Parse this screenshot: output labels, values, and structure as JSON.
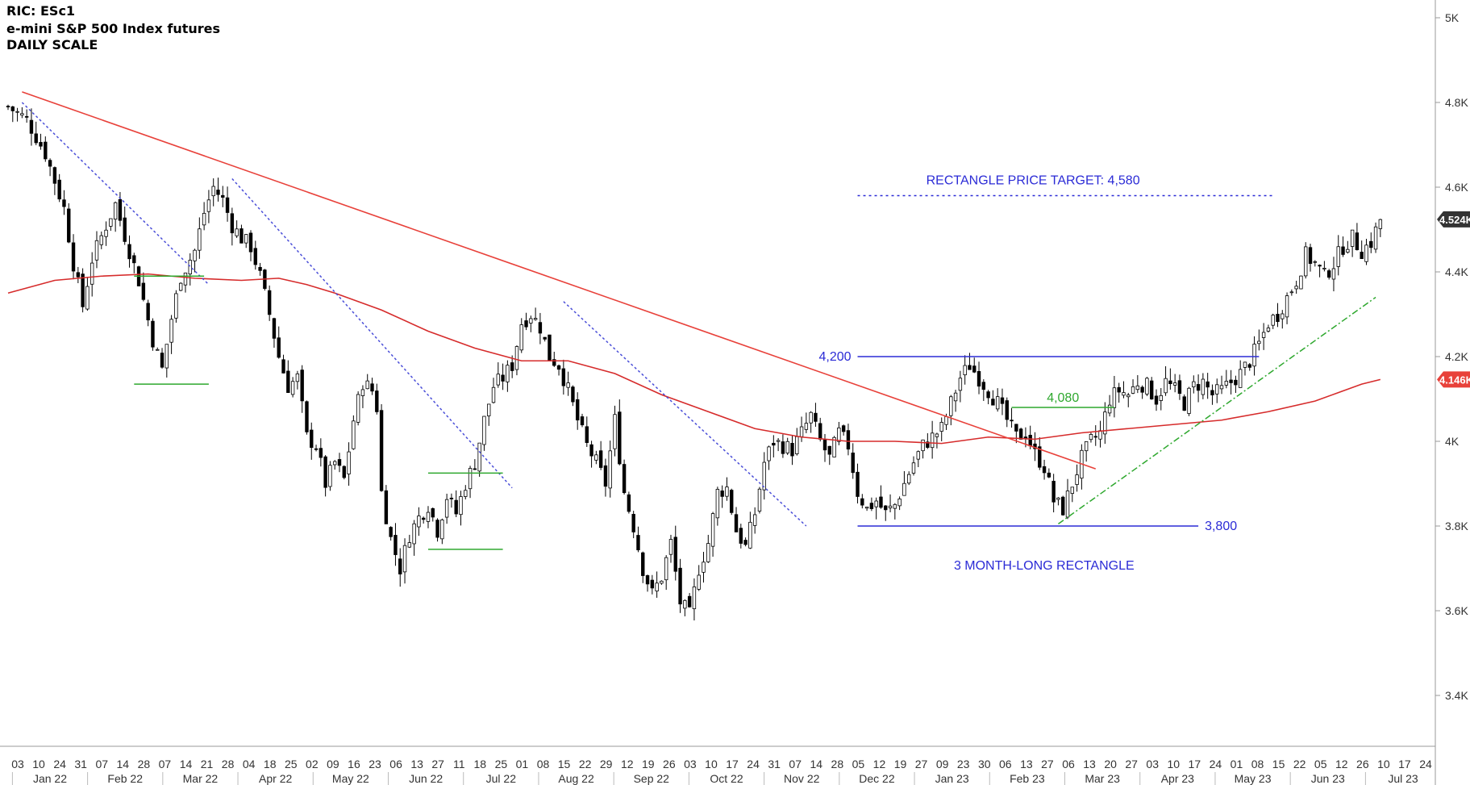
{
  "header": {
    "ric": "RIC: ESc1",
    "instrument": "e-mini S&P 500 Index futures",
    "scale": "DAILY SCALE"
  },
  "colors": {
    "candle": "#000000",
    "ma": "#d62b2b",
    "trendline": "#e8413a",
    "dotted_trend": "#4a4ed8",
    "rectangle": "#2b2bd6",
    "annotation_text": "#2b2bd6",
    "green_levels": "#2ea82e",
    "price_badge_last": "#333333",
    "price_badge_ma": "#e8413a"
  },
  "chart_data": {
    "type": "candlestick",
    "title": "e-mini S&P 500 Index futures",
    "ylim": [
      3400,
      5100
    ],
    "y_ticks": [
      "5K",
      "4.8K",
      "4.6K",
      "4.4K",
      "4.2K",
      "4K",
      "3.8K",
      "3.6K",
      "3.4K"
    ],
    "y_tick_values": [
      5000,
      4800,
      4600,
      4400,
      4200,
      4000,
      3800,
      3600,
      3400
    ],
    "x_day_labels": [
      "03",
      "10",
      "24",
      "31",
      "07",
      "14",
      "28",
      "07",
      "14",
      "21",
      "28",
      "04",
      "18",
      "25",
      "02",
      "09",
      "16",
      "23",
      "06",
      "13",
      "27",
      "11",
      "18",
      "25",
      "01",
      "08",
      "15",
      "22",
      "29",
      "12",
      "19",
      "26",
      "03",
      "10",
      "17",
      "24",
      "31",
      "07",
      "14",
      "28",
      "05",
      "12",
      "19",
      "27",
      "09",
      "23",
      "30",
      "06",
      "13",
      "27",
      "06",
      "13",
      "20",
      "27",
      "03",
      "10",
      "17",
      "24",
      "01",
      "08",
      "15",
      "22",
      "05",
      "12",
      "26",
      "10",
      "17",
      "24"
    ],
    "x_month_labels": [
      "Jan 22",
      "Feb 22",
      "Mar 22",
      "Apr 22",
      "May 22",
      "Jun 22",
      "Jul 22",
      "Aug 22",
      "Sep 22",
      "Oct 22",
      "Nov 22",
      "Dec 22",
      "Jan 23",
      "Feb 23",
      "Mar 23",
      "Apr 23",
      "May 23",
      "Jun 23",
      "Jul 23"
    ],
    "price_path": [
      [
        0,
        4790
      ],
      [
        4,
        4760
      ],
      [
        8,
        4680
      ],
      [
        12,
        4550
      ],
      [
        14,
        4420
      ],
      [
        16,
        4320
      ],
      [
        18,
        4430
      ],
      [
        21,
        4510
      ],
      [
        23,
        4560
      ],
      [
        26,
        4450
      ],
      [
        28,
        4380
      ],
      [
        31,
        4240
      ],
      [
        33,
        4170
      ],
      [
        35,
        4290
      ],
      [
        37,
        4390
      ],
      [
        40,
        4450
      ],
      [
        42,
        4540
      ],
      [
        44,
        4600
      ],
      [
        46,
        4570
      ],
      [
        48,
        4510
      ],
      [
        50,
        4480
      ],
      [
        52,
        4460
      ],
      [
        54,
        4390
      ],
      [
        56,
        4300
      ],
      [
        58,
        4200
      ],
      [
        60,
        4130
      ],
      [
        62,
        4150
      ],
      [
        64,
        4010
      ],
      [
        66,
        3990
      ],
      [
        68,
        3900
      ],
      [
        70,
        3950
      ],
      [
        72,
        3910
      ],
      [
        74,
        4050
      ],
      [
        76,
        4140
      ],
      [
        78,
        4120
      ],
      [
        79,
        4080
      ],
      [
        80,
        3880
      ],
      [
        82,
        3770
      ],
      [
        84,
        3700
      ],
      [
        86,
        3780
      ],
      [
        88,
        3820
      ],
      [
        90,
        3850
      ],
      [
        92,
        3790
      ],
      [
        94,
        3870
      ],
      [
        96,
        3830
      ],
      [
        98,
        3900
      ],
      [
        100,
        3950
      ],
      [
        102,
        4050
      ],
      [
        104,
        4130
      ],
      [
        106,
        4150
      ],
      [
        108,
        4180
      ],
      [
        110,
        4280
      ],
      [
        112,
        4300
      ],
      [
        114,
        4270
      ],
      [
        116,
        4200
      ],
      [
        118,
        4180
      ],
      [
        120,
        4120
      ],
      [
        122,
        4050
      ],
      [
        124,
        3990
      ],
      [
        126,
        3950
      ],
      [
        128,
        3900
      ],
      [
        130,
        4050
      ],
      [
        132,
        3880
      ],
      [
        134,
        3800
      ],
      [
        136,
        3700
      ],
      [
        138,
        3640
      ],
      [
        140,
        3680
      ],
      [
        142,
        3760
      ],
      [
        144,
        3620
      ],
      [
        146,
        3590
      ],
      [
        148,
        3700
      ],
      [
        150,
        3760
      ],
      [
        152,
        3880
      ],
      [
        154,
        3890
      ],
      [
        156,
        3790
      ],
      [
        158,
        3750
      ],
      [
        160,
        3830
      ],
      [
        162,
        3950
      ],
      [
        164,
        4000
      ],
      [
        166,
        3990
      ],
      [
        168,
        3980
      ],
      [
        170,
        4020
      ],
      [
        172,
        4060
      ],
      [
        174,
        4000
      ],
      [
        176,
        3960
      ],
      [
        178,
        4020
      ],
      [
        180,
        3990
      ],
      [
        182,
        3880
      ],
      [
        184,
        3840
      ],
      [
        186,
        3860
      ],
      [
        188,
        3830
      ],
      [
        190,
        3850
      ],
      [
        192,
        3900
      ],
      [
        194,
        3950
      ],
      [
        196,
        3990
      ],
      [
        198,
        4010
      ],
      [
        200,
        4030
      ],
      [
        202,
        4090
      ],
      [
        204,
        4150
      ],
      [
        206,
        4180
      ],
      [
        208,
        4150
      ],
      [
        210,
        4120
      ],
      [
        212,
        4090
      ],
      [
        214,
        4050
      ],
      [
        216,
        4010
      ],
      [
        218,
        4020
      ],
      [
        220,
        3970
      ],
      [
        222,
        3940
      ],
      [
        224,
        3860
      ],
      [
        226,
        3840
      ],
      [
        228,
        3900
      ],
      [
        230,
        3960
      ],
      [
        232,
        4000
      ],
      [
        234,
        4020
      ],
      [
        236,
        4100
      ],
      [
        238,
        4120
      ],
      [
        240,
        4110
      ],
      [
        242,
        4140
      ],
      [
        244,
        4130
      ],
      [
        246,
        4100
      ],
      [
        248,
        4140
      ],
      [
        250,
        4120
      ],
      [
        252,
        4090
      ],
      [
        254,
        4130
      ],
      [
        256,
        4140
      ],
      [
        258,
        4110
      ],
      [
        260,
        4120
      ],
      [
        262,
        4140
      ],
      [
        264,
        4160
      ],
      [
        266,
        4190
      ],
      [
        268,
        4230
      ],
      [
        270,
        4280
      ],
      [
        272,
        4300
      ],
      [
        274,
        4340
      ],
      [
        276,
        4380
      ],
      [
        278,
        4440
      ],
      [
        280,
        4420
      ],
      [
        282,
        4390
      ],
      [
        284,
        4420
      ],
      [
        286,
        4460
      ],
      [
        288,
        4480
      ],
      [
        290,
        4450
      ],
      [
        292,
        4470
      ],
      [
        294,
        4524
      ]
    ],
    "moving_average": [
      [
        0,
        4350
      ],
      [
        10,
        4380
      ],
      [
        20,
        4390
      ],
      [
        30,
        4395
      ],
      [
        40,
        4385
      ],
      [
        50,
        4380
      ],
      [
        58,
        4385
      ],
      [
        64,
        4370
      ],
      [
        70,
        4350
      ],
      [
        80,
        4310
      ],
      [
        90,
        4260
      ],
      [
        100,
        4220
      ],
      [
        110,
        4190
      ],
      [
        120,
        4190
      ],
      [
        130,
        4160
      ],
      [
        140,
        4110
      ],
      [
        150,
        4070
      ],
      [
        160,
        4030
      ],
      [
        170,
        4010
      ],
      [
        180,
        4000
      ],
      [
        190,
        4000
      ],
      [
        200,
        3995
      ],
      [
        210,
        4010
      ],
      [
        220,
        4005
      ],
      [
        230,
        4020
      ],
      [
        240,
        4030
      ],
      [
        250,
        4040
      ],
      [
        260,
        4050
      ],
      [
        270,
        4070
      ],
      [
        280,
        4095
      ],
      [
        285,
        4115
      ],
      [
        290,
        4135
      ],
      [
        294,
        4146
      ]
    ],
    "trendlines": [
      {
        "style": "solid-red",
        "points": [
          [
            3,
            4825
          ],
          [
            233,
            3935
          ]
        ]
      },
      {
        "style": "dotted-blue",
        "points": [
          [
            3,
            4800
          ],
          [
            43,
            4370
          ]
        ]
      },
      {
        "style": "dotted-blue",
        "points": [
          [
            48,
            4620
          ],
          [
            108,
            3890
          ]
        ]
      },
      {
        "style": "dotted-blue",
        "points": [
          [
            119,
            4330
          ],
          [
            171,
            3800
          ]
        ]
      },
      {
        "style": "dashdot-green",
        "points": [
          [
            225,
            3805
          ],
          [
            293,
            4340
          ]
        ]
      }
    ],
    "levels": [
      {
        "kind": "rectangle-top",
        "value": 4200,
        "x": [
          182,
          268
        ],
        "color": "blue",
        "label": "4,200"
      },
      {
        "kind": "rectangle-bottom",
        "value": 3800,
        "x": [
          182,
          255
        ],
        "color": "blue",
        "label": "3,800"
      },
      {
        "kind": "target",
        "value": 4580,
        "x": [
          182,
          271
        ],
        "color": "blue-dotted",
        "label": ""
      },
      {
        "kind": "green",
        "value": 4080,
        "x": [
          215,
          237
        ],
        "label": "4,080"
      },
      {
        "kind": "green",
        "value": 4390,
        "x": [
          27,
          42
        ],
        "label": ""
      },
      {
        "kind": "green",
        "value": 4135,
        "x": [
          27,
          43
        ],
        "label": ""
      },
      {
        "kind": "green",
        "value": 3925,
        "x": [
          90,
          106
        ],
        "label": ""
      },
      {
        "kind": "green",
        "value": 3745,
        "x": [
          90,
          106
        ],
        "label": ""
      }
    ],
    "annotations": {
      "target_label": "RECTANGLE PRICE TARGET: 4,580",
      "rectangle_label": "3 MONTH-LONG RECTANGLE"
    },
    "price_badges": [
      {
        "text": "4.524K",
        "value": 4524,
        "color": "dark"
      },
      {
        "text": "4.146K",
        "value": 4146,
        "color": "red"
      }
    ]
  }
}
